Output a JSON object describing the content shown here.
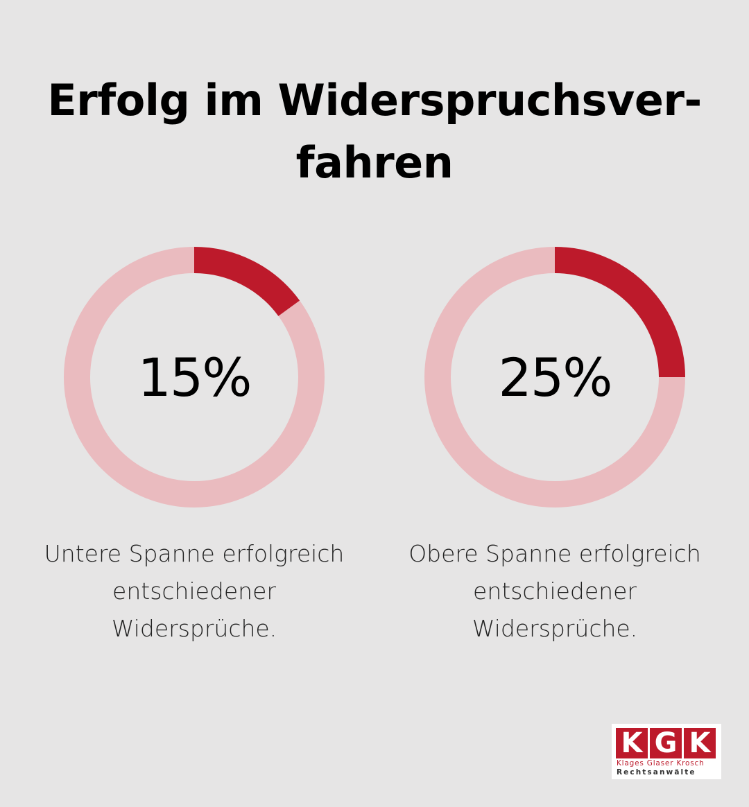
{
  "title": {
    "line1": "Erfolg im Widerspruchsver-",
    "line2": "fahren"
  },
  "colors": {
    "background": "#e6e5e5",
    "accent": "#bd1a2b",
    "track": "#eabbbf"
  },
  "chart_data": [
    {
      "type": "pie",
      "value": 15,
      "label": "15%",
      "caption": [
        "Untere Spanne erfolgreich",
        "entschiedener",
        "Widersprüche."
      ]
    },
    {
      "type": "pie",
      "value": 25,
      "label": "25%",
      "caption": [
        "Obere Spanne erfolgreich",
        "entschiedener",
        "Widersprüche."
      ]
    }
  ],
  "logo": {
    "letters": [
      "K",
      "G",
      "K"
    ],
    "names": "Klages Glaser Krosch",
    "subtitle": "Rechtsanwälte"
  }
}
